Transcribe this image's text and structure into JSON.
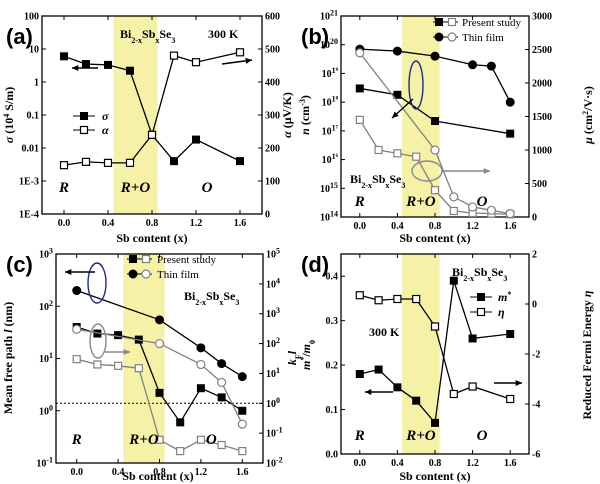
{
  "chart_data": [
    {
      "panel": "(a)",
      "type": "line",
      "material": "Bi2-xSbxSe3",
      "temperature_label": "300 K",
      "xlabel": "Sb content (x)",
      "xlim": [
        -0.2,
        1.8
      ],
      "xticks": [
        "0.0",
        "0.4",
        "0.8",
        "1.2",
        "1.6"
      ],
      "left_axis": {
        "label": "σ (10⁴ S/m)",
        "scale": "log",
        "ylim": [
          0.0001,
          100
        ],
        "ticks": [
          "1E-4",
          "1E-3",
          "0.01",
          "0.1",
          "1",
          "10",
          "100"
        ]
      },
      "right_axis": {
        "label": "α (μV/K)",
        "scale": "linear",
        "ylim": [
          0,
          600
        ],
        "ticks": [
          "0",
          "100",
          "200",
          "300",
          "400",
          "500",
          "600"
        ]
      },
      "phase_labels": [
        "R",
        "R+O",
        "O"
      ],
      "highlight": {
        "range": [
          0.45,
          0.85
        ],
        "color": "#f5f2a8"
      },
      "series": [
        {
          "name": "σ",
          "axis": "left",
          "marker": "filled-square",
          "x": [
            0.0,
            0.2,
            0.4,
            0.6,
            0.8,
            1.0,
            1.2,
            1.6
          ],
          "y": [
            6,
            3.5,
            3.3,
            2.2,
            0.025,
            0.004,
            0.018,
            0.004
          ]
        },
        {
          "name": "α",
          "axis": "right",
          "marker": "open-square",
          "x": [
            0.0,
            0.2,
            0.4,
            0.6,
            0.8,
            1.0,
            1.2,
            1.6
          ],
          "y": [
            148,
            158,
            155,
            155,
            240,
            480,
            460,
            490
          ]
        }
      ]
    },
    {
      "panel": "(b)",
      "type": "line",
      "material": "Bi2-xSbxSe3",
      "xlabel": "Sb content (x)",
      "xlim": [
        -0.2,
        1.8
      ],
      "xticks": [
        "0.0",
        "0.4",
        "0.8",
        "1.2",
        "1.6"
      ],
      "left_axis": {
        "label": "n (cm⁻³)",
        "scale": "log",
        "ylim": [
          100000000000000.0,
          1e+21
        ],
        "ticks": [
          "10¹⁴",
          "10¹⁵",
          "10¹⁶",
          "10¹⁷",
          "10¹⁸",
          "10¹⁹",
          "10²⁰",
          "10²¹"
        ]
      },
      "right_axis": {
        "label": "μ (cm²/V·s)",
        "scale": "linear",
        "ylim": [
          0,
          3000
        ],
        "ticks": [
          "0",
          "500",
          "1000",
          "1500",
          "2000",
          "2500",
          "3000"
        ]
      },
      "legend": [
        "Present study",
        "Thin film"
      ],
      "phase_labels": [
        "R",
        "R+O",
        "O"
      ],
      "highlight": {
        "range": [
          0.45,
          0.85
        ],
        "color": "#f5f2a8"
      },
      "series": [
        {
          "name": "n Present study",
          "axis": "left",
          "marker": "filled-square",
          "color": "#000000",
          "x": [
            0.0,
            0.4,
            0.8,
            1.6
          ],
          "y": [
            3e+18,
            1.8e+18,
            2.2e+17,
            8e+16
          ]
        },
        {
          "name": "n Thin film",
          "axis": "left",
          "marker": "filled-circle",
          "color": "#000000",
          "x": [
            0.0,
            0.4,
            0.8,
            1.2,
            1.4,
            1.6
          ],
          "y": [
            7e+19,
            6e+19,
            4e+19,
            2e+19,
            1.8e+19,
            1e+18
          ]
        },
        {
          "name": "μ Present study",
          "axis": "right",
          "marker": "open-square",
          "color": "#808080",
          "x": [
            0.0,
            0.2,
            0.4,
            0.6,
            0.8,
            1.0,
            1.2,
            1.4,
            1.6
          ],
          "y": [
            1450,
            1000,
            950,
            900,
            400,
            90,
            60,
            50,
            40
          ]
        },
        {
          "name": "μ Thin film",
          "axis": "right",
          "marker": "open-circle",
          "color": "#808080",
          "x": [
            0.0,
            0.8,
            1.0,
            1.2,
            1.4,
            1.6
          ],
          "y": [
            2450,
            1000,
            300,
            150,
            100,
            50
          ]
        }
      ]
    },
    {
      "panel": "(c)",
      "type": "line",
      "material": "Bi2-xSbxSe3",
      "xlabel": "Sb content (x)",
      "xlim": [
        -0.2,
        1.8
      ],
      "xticks": [
        "0.0",
        "0.4",
        "0.8",
        "1.2",
        "1.6"
      ],
      "left_axis": {
        "label": "Mean free path l (nm)",
        "scale": "log",
        "ylim": [
          0.1,
          1000
        ],
        "ticks": [
          "10⁻¹",
          "10⁰",
          "10¹",
          "10²",
          "10³"
        ]
      },
      "right_axis": {
        "label": "k_F l",
        "scale": "log",
        "ylim": [
          0.01,
          100000
        ],
        "ticks": [
          "10⁻²",
          "10⁻¹",
          "10⁰",
          "10¹",
          "10²",
          "10³",
          "10⁴",
          "10⁵"
        ]
      },
      "reference_line": {
        "axis": "right",
        "value": 1,
        "style": "dotted"
      },
      "legend": [
        "Present study",
        "Thin film"
      ],
      "phase_labels": [
        "R",
        "R+O",
        "O"
      ],
      "highlight": {
        "range": [
          0.45,
          0.85
        ],
        "color": "#f5f2a8"
      },
      "series": [
        {
          "name": "l Present study",
          "axis": "left",
          "marker": "filled-square",
          "color": "#000000",
          "x": [
            0.0,
            0.2,
            0.4,
            0.6,
            0.8,
            1.0,
            1.2,
            1.4,
            1.6
          ],
          "y": [
            40,
            30,
            28,
            23,
            2.2,
            0.6,
            2.7,
            1.8,
            1.0
          ]
        },
        {
          "name": "l Thin film",
          "axis": "left",
          "marker": "filled-circle",
          "color": "#000000",
          "x": [
            0.0,
            0.8,
            1.2,
            1.4,
            1.6
          ],
          "y": [
            200,
            55,
            16,
            8,
            4.5
          ]
        },
        {
          "name": "kF l Present study",
          "axis": "right",
          "marker": "open-square",
          "color": "#808080",
          "x": [
            0.0,
            0.2,
            0.4,
            0.6,
            0.8,
            1.0,
            1.2,
            1.4,
            1.6
          ],
          "y": [
            30,
            20,
            18,
            15,
            0.06,
            0.025,
            0.06,
            0.04,
            0.025
          ]
        },
        {
          "name": "kF l Thin film",
          "axis": "right",
          "marker": "open-circle",
          "color": "#808080",
          "x": [
            0.0,
            0.8,
            1.2,
            1.4,
            1.6
          ],
          "y": [
            300,
            100,
            20,
            5,
            0.2
          ]
        }
      ]
    },
    {
      "panel": "(d)",
      "type": "line",
      "material": "Bi2-xSbxSe3",
      "temperature_label": "300 K",
      "xlabel": "Sb content (x)",
      "xlim": [
        -0.2,
        1.8
      ],
      "xticks": [
        "0.0",
        "0.4",
        "0.8",
        "1.2",
        "1.6"
      ],
      "left_axis": {
        "label": "m*/m₀",
        "scale": "linear",
        "ylim": [
          0.0,
          0.45
        ],
        "ticks": [
          "0.0",
          "0.1",
          "0.2",
          "0.3",
          "0.4"
        ]
      },
      "right_axis": {
        "label": "Reduced Fermi Energy η",
        "scale": "linear",
        "ylim": [
          -6,
          2
        ],
        "ticks": [
          "-6",
          "-4",
          "-2",
          "0",
          "2"
        ]
      },
      "phase_labels": [
        "R",
        "R+O",
        "O"
      ],
      "highlight": {
        "range": [
          0.45,
          0.85
        ],
        "color": "#f5f2a8"
      },
      "series": [
        {
          "name": "m*",
          "axis": "left",
          "marker": "filled-square",
          "x": [
            0.0,
            0.2,
            0.4,
            0.6,
            0.8,
            1.0,
            1.2,
            1.6
          ],
          "y": [
            0.18,
            0.19,
            0.15,
            0.12,
            0.07,
            0.39,
            0.26,
            0.27
          ]
        },
        {
          "name": "η",
          "axis": "right",
          "marker": "open-square",
          "x": [
            0.0,
            0.2,
            0.4,
            0.6,
            0.8,
            1.0,
            1.2,
            1.6
          ],
          "y": [
            0.35,
            0.15,
            0.2,
            0.2,
            -0.9,
            -3.6,
            -3.3,
            -3.8
          ]
        }
      ]
    }
  ]
}
